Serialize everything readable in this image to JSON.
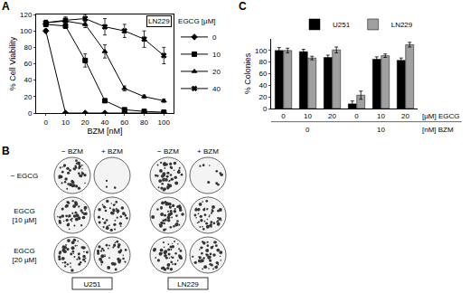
{
  "chart_data": [
    {
      "panel": "A",
      "type": "line",
      "categories": [
        "0",
        "10",
        "20",
        "40",
        "60",
        "80",
        "100"
      ],
      "x_label": "BZM [nM]",
      "y_label": "% Cell Viability",
      "ylim": [
        0,
        120
      ],
      "yticks": [
        0,
        20,
        40,
        60,
        80,
        100,
        120
      ],
      "legend": "right",
      "legend_title": "EGCG [µM]",
      "annotations": [
        "LN229"
      ],
      "series": [
        {
          "name": "0",
          "color": "#000000",
          "marker": "diamond",
          "values": [
            100,
            0,
            0,
            0,
            0,
            0,
            0
          ],
          "errors": [
            2,
            0,
            0,
            0,
            0,
            0,
            0
          ]
        },
        {
          "name": "10",
          "color": "#000000",
          "marker": "square",
          "values": [
            108,
            106,
            64,
            15,
            4,
            2,
            1
          ],
          "errors": [
            3,
            3,
            8,
            2,
            1,
            0,
            0
          ]
        },
        {
          "name": "20",
          "color": "#000000",
          "marker": "triangle-up",
          "values": [
            110,
            112,
            108,
            75,
            30,
            20,
            15
          ],
          "errors": [
            3,
            3,
            4,
            8,
            3,
            2,
            2
          ]
        },
        {
          "name": "40",
          "color": "#000000",
          "marker": "x",
          "values": [
            110,
            113,
            115,
            105,
            100,
            90,
            70
          ],
          "errors": [
            3,
            4,
            5,
            10,
            8,
            10,
            10
          ]
        }
      ]
    },
    {
      "panel": "C",
      "type": "bar",
      "categories": [
        "0",
        "10",
        "20",
        "0",
        "10",
        "20"
      ],
      "group_labels": [
        "0",
        "0",
        "0",
        "10",
        "10",
        "10"
      ],
      "row_labels": [
        "[µM] EGCG",
        "[nM] BZM"
      ],
      "y_label": "% Colonies",
      "ylim": [
        0,
        120
      ],
      "yticks": [
        0,
        20,
        40,
        60,
        80,
        100
      ],
      "legend": "top",
      "series": [
        {
          "name": "U251",
          "color": "#000000",
          "values": [
            100,
            98,
            88,
            8,
            85,
            83
          ],
          "errors": [
            5,
            4,
            4,
            5,
            4,
            4
          ]
        },
        {
          "name": "LN229",
          "color": "#a0a0a0",
          "values": [
            100,
            87,
            101,
            23,
            91,
            110
          ],
          "errors": [
            4,
            3,
            5,
            7,
            3,
            4
          ]
        }
      ]
    }
  ],
  "panel_b": {
    "panel": "B",
    "columns": [
      "− BZM",
      "+ BZM",
      "− BZM",
      "+ BZM"
    ],
    "rows": [
      [
        "− EGCG"
      ],
      [
        "EGCG",
        "[10 µM]"
      ],
      [
        "EGCG",
        "[20 µM]"
      ]
    ],
    "cell_lines": [
      "U251",
      "LN229"
    ]
  }
}
